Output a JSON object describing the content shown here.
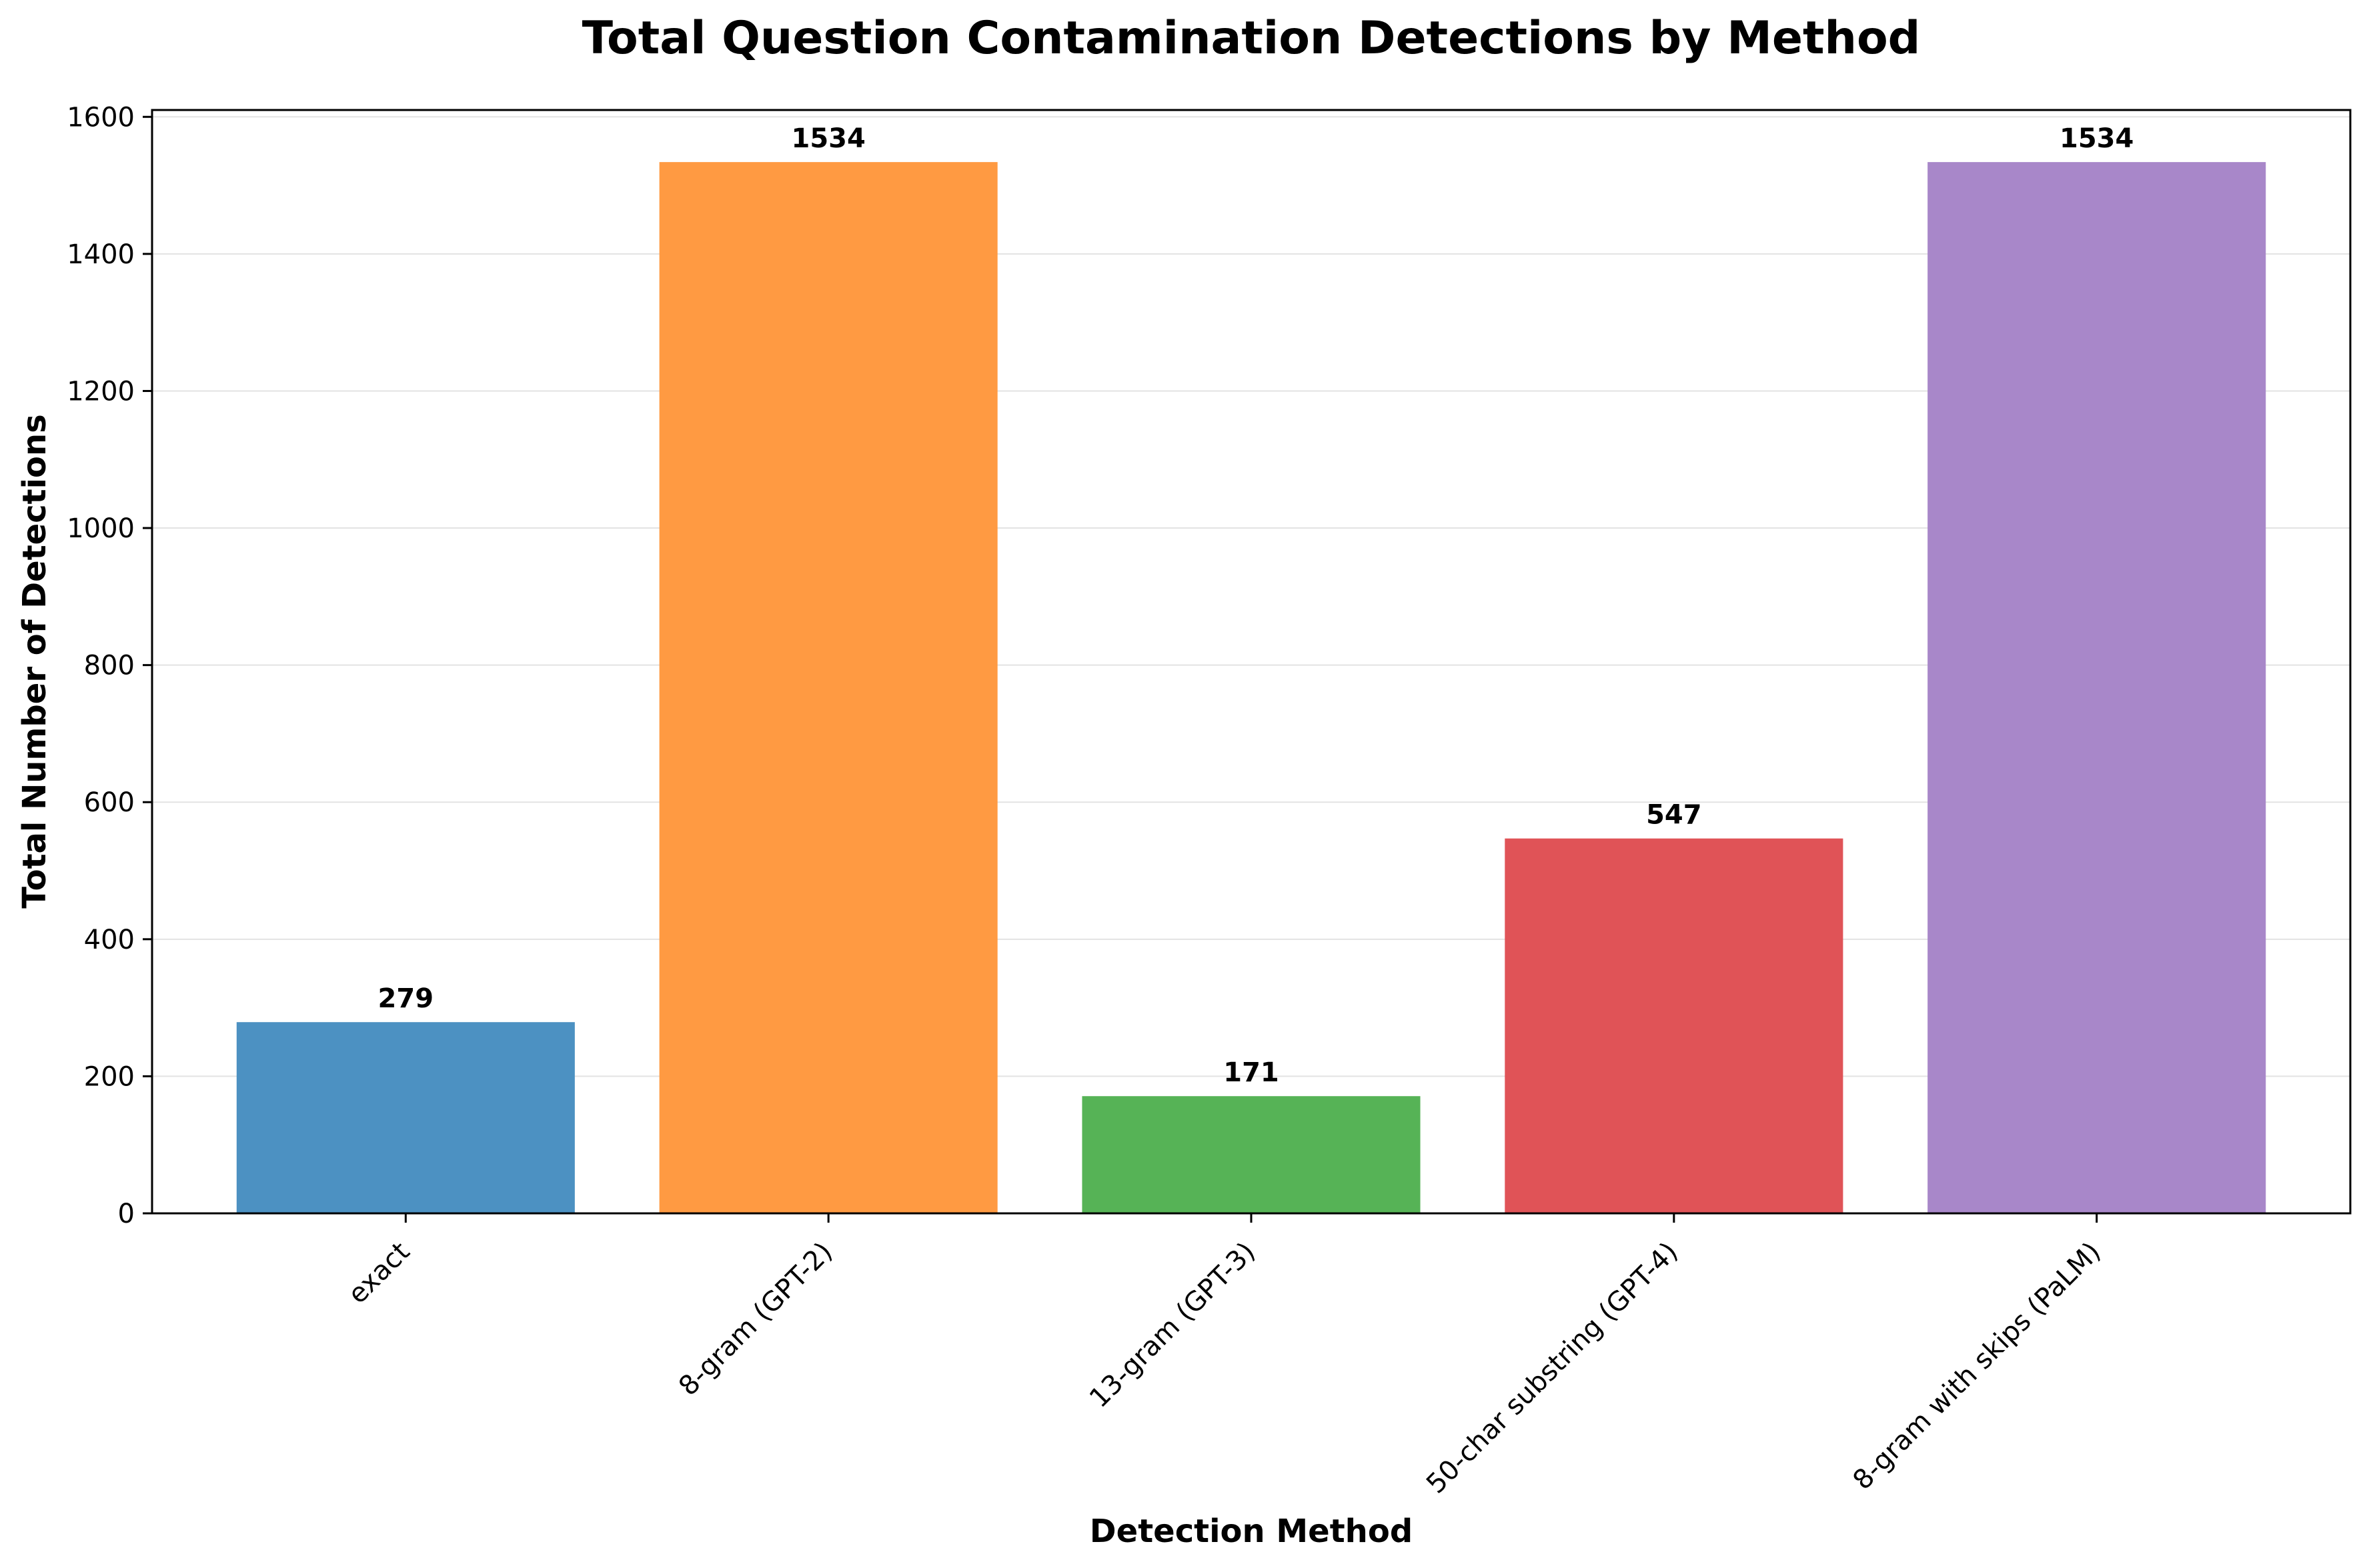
{
  "chart_data": {
    "type": "bar",
    "title": "Total Question Contamination Detections by Method",
    "xlabel": "Detection Method",
    "ylabel": "Total Number of Detections",
    "categories": [
      "exact",
      "8-gram (GPT-2)",
      "13-gram (GPT-3)",
      "50-char substring (GPT-4)",
      "8-gram with skips (PaLM)"
    ],
    "values": [
      279,
      1534,
      171,
      547,
      1534
    ],
    "data_labels": [
      "279",
      "1534",
      "171",
      "547",
      "1534"
    ],
    "colors": [
      "#4c91c2",
      "#ff9a42",
      "#56b356",
      "#e05357",
      "#a887c9"
    ],
    "ylim": [
      0,
      1610
    ],
    "yticks": [
      0,
      200,
      400,
      600,
      800,
      1000,
      1200,
      1400,
      1600
    ],
    "ytick_labels": [
      "0",
      "200",
      "400",
      "600",
      "800",
      "1000",
      "1200",
      "1400",
      "1600"
    ],
    "grid": "y",
    "legend": "none"
  }
}
